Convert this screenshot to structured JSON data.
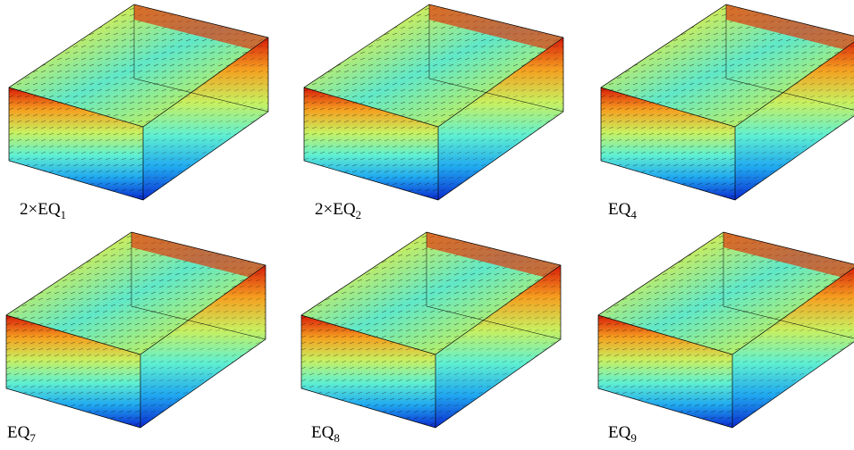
{
  "panels": [
    {
      "label": "2×EQ",
      "subscript": "1"
    },
    {
      "label": "2×EQ",
      "subscript": "2"
    },
    {
      "label": "EQ",
      "subscript": "4"
    },
    {
      "label": "EQ",
      "subscript": "7"
    },
    {
      "label": "EQ",
      "subscript": "8"
    },
    {
      "label": "EQ",
      "subscript": "9"
    }
  ]
}
